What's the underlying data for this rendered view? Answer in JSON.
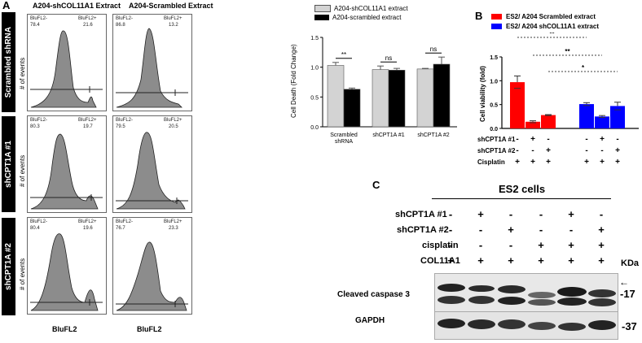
{
  "panelA": {
    "letter": "A",
    "col_titles": [
      "A204-shCOL11A1 Extract",
      "A204-Scrambled Extract"
    ],
    "row_labels": [
      "Scrambled shRNA",
      "shCPT1A #1",
      "shCPT1A #2"
    ],
    "y_axis_label": "# of events",
    "x_axis_label": "BluFL2",
    "gate_neg": "BluFL2-",
    "gate_pos": "BluFL2+",
    "gates": [
      [
        {
          "neg": "78.4",
          "pos": "21.6"
        },
        {
          "neg": "86.8",
          "pos": "13.2"
        }
      ],
      [
        {
          "neg": "80.3",
          "pos": "19.7"
        },
        {
          "neg": "79.5",
          "pos": "20.5"
        }
      ],
      [
        {
          "neg": "80.4",
          "pos": "19.6"
        },
        {
          "neg": "76.7",
          "pos": "23.3"
        }
      ]
    ]
  },
  "panelA_bar": {
    "chart_data": {
      "type": "bar",
      "categories": [
        "Scrambled\nshRNA",
        "shCPT1A #1",
        "shCPT1A #2"
      ],
      "series": [
        {
          "name": "A204-shCOL11A1 extract",
          "values": [
            1.03,
            0.96,
            0.97
          ],
          "errors": [
            0.05,
            0.06,
            0.01
          ],
          "color": "#d3d3d3"
        },
        {
          "name": "A204-scrambled extract",
          "values": [
            0.63,
            0.95,
            1.05
          ],
          "errors": [
            0.02,
            0.03,
            0.12
          ],
          "color": "#000000"
        }
      ],
      "ylabel": "Cell Death (Fold Change)",
      "ylim": [
        0,
        1.5
      ],
      "yticks": [
        "0.0",
        "0.5",
        "1.0",
        "1.5"
      ],
      "significance": [
        "**",
        "ns",
        "ns"
      ],
      "cat_labels": [
        "Scrambled",
        "shRNA",
        "shCPT1A #1",
        "shCPT1A #2"
      ]
    }
  },
  "panelB": {
    "letter": "B",
    "chart_data": {
      "type": "bar",
      "series": [
        {
          "name": "ES2/ A204 Scrambled extract",
          "values": [
            0.97,
            0.14,
            0.28
          ],
          "errors": [
            0.13,
            0.02,
            0.01
          ],
          "color": "#ff0000"
        },
        {
          "name": "ES2/ A204 shCOL11A1 extract",
          "values": [
            0.51,
            0.25,
            0.47
          ],
          "errors": [
            0.03,
            0.02,
            0.08
          ],
          "color": "#0000ff"
        }
      ],
      "ylabel": "Cell viability (fold)",
      "ylim": [
        0,
        1.5
      ],
      "yticks": [
        "0.0",
        "0.5",
        "1.0",
        "1.5"
      ],
      "significance": [
        "**",
        "**",
        "*"
      ]
    },
    "conditions": [
      {
        "label": "shCPT1A #1",
        "signs": [
          "-",
          "+",
          "-",
          "-",
          "+",
          "-"
        ]
      },
      {
        "label": "shCPT1A #2",
        "signs": [
          "-",
          "-",
          "+",
          "-",
          "-",
          "+"
        ]
      },
      {
        "label": "Cisplatin",
        "signs": [
          "+",
          "+",
          "+",
          "+",
          "+",
          "+"
        ]
      }
    ]
  },
  "panelC": {
    "letter": "C",
    "title": "ES2 cells",
    "conditions": [
      {
        "label": "shCPT1A #1",
        "signs": [
          "-",
          "+",
          "-",
          "-",
          "+",
          "-"
        ]
      },
      {
        "label": "shCPT1A #2",
        "signs": [
          "-",
          "-",
          "+",
          "-",
          "-",
          "+"
        ]
      },
      {
        "label": "cisplatin",
        "signs": [
          "-",
          "-",
          "-",
          "+",
          "+",
          "+"
        ]
      },
      {
        "label": "COL11A1",
        "signs": [
          "+",
          "+",
          "+",
          "+",
          "+",
          "+"
        ]
      }
    ],
    "kda_label": "KDa",
    "blots": [
      {
        "label": "Cleaved caspase 3",
        "kda": "-17",
        "arrow": "←"
      },
      {
        "label": "GAPDH",
        "kda": "-37"
      }
    ]
  }
}
